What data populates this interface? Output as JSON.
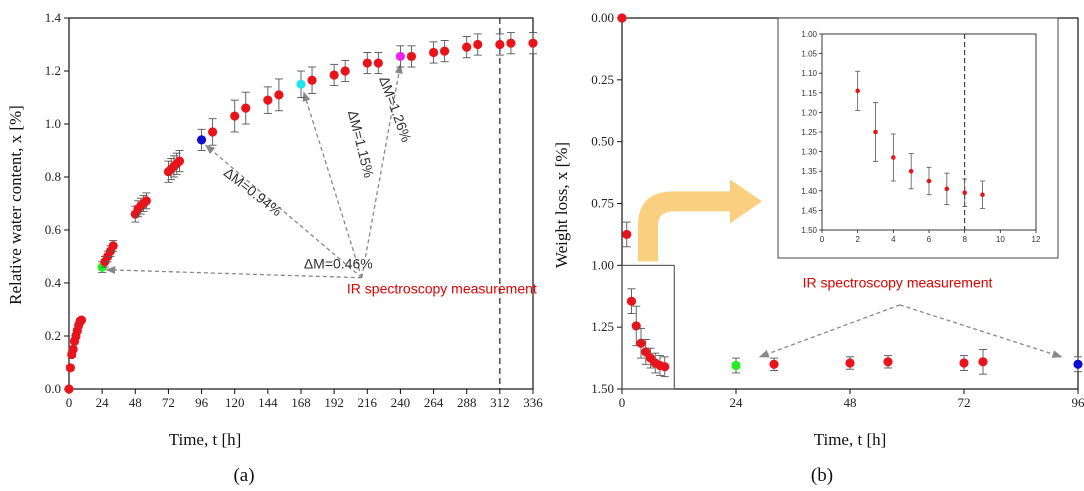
{
  "panel_labels": {
    "a": "(a)",
    "b": "(b)"
  },
  "chart_data": [
    {
      "type": "scatter",
      "xlabel": "Time, t [h]",
      "ylabel": "Relative water content, x [%]",
      "xlim": [
        0,
        336
      ],
      "ylim": [
        0,
        1.4
      ],
      "xticks": [
        "0",
        "24",
        "48",
        "72",
        "96",
        "120",
        "144",
        "168",
        "192",
        "216",
        "240",
        "264",
        "288",
        "312",
        "336"
      ],
      "yticks": [
        "0.0",
        "0.2",
        "0.4",
        "0.6",
        "0.8",
        "1.0",
        "1.2",
        "1.4"
      ],
      "vline_x": 312,
      "colors": {
        "default": "#e8141c",
        "green": "#22ee22",
        "blue": "#1010cc",
        "cyan": "#22e5f0",
        "magenta": "#ee22ee",
        "arrow": "#888888"
      },
      "points": [
        {
          "x": 0,
          "y": 0.0,
          "err": 0
        },
        {
          "x": 1,
          "y": 0.08,
          "err": 0.01
        },
        {
          "x": 2,
          "y": 0.13,
          "err": 0.01
        },
        {
          "x": 3,
          "y": 0.15,
          "err": 0.01
        },
        {
          "x": 4,
          "y": 0.18,
          "err": 0.01
        },
        {
          "x": 5,
          "y": 0.2,
          "err": 0.01
        },
        {
          "x": 6,
          "y": 0.22,
          "err": 0.01
        },
        {
          "x": 7,
          "y": 0.24,
          "err": 0.01
        },
        {
          "x": 8,
          "y": 0.255,
          "err": 0.01
        },
        {
          "x": 9,
          "y": 0.26,
          "err": 0.01
        },
        {
          "x": 24,
          "y": 0.46,
          "err": 0.02,
          "color": "green"
        },
        {
          "x": 26,
          "y": 0.48,
          "err": 0.02
        },
        {
          "x": 28,
          "y": 0.5,
          "err": 0.02
        },
        {
          "x": 30,
          "y": 0.52,
          "err": 0.02
        },
        {
          "x": 32,
          "y": 0.54,
          "err": 0.02
        },
        {
          "x": 48,
          "y": 0.66,
          "err": 0.03
        },
        {
          "x": 50,
          "y": 0.68,
          "err": 0.03
        },
        {
          "x": 52,
          "y": 0.69,
          "err": 0.03
        },
        {
          "x": 54,
          "y": 0.7,
          "err": 0.03
        },
        {
          "x": 56,
          "y": 0.71,
          "err": 0.03
        },
        {
          "x": 72,
          "y": 0.82,
          "err": 0.04
        },
        {
          "x": 74,
          "y": 0.83,
          "err": 0.04
        },
        {
          "x": 76,
          "y": 0.84,
          "err": 0.04
        },
        {
          "x": 78,
          "y": 0.85,
          "err": 0.04
        },
        {
          "x": 80,
          "y": 0.86,
          "err": 0.04
        },
        {
          "x": 96,
          "y": 0.94,
          "err": 0.04,
          "color": "blue"
        },
        {
          "x": 104,
          "y": 0.97,
          "err": 0.05
        },
        {
          "x": 120,
          "y": 1.03,
          "err": 0.06
        },
        {
          "x": 128,
          "y": 1.06,
          "err": 0.06
        },
        {
          "x": 144,
          "y": 1.09,
          "err": 0.05
        },
        {
          "x": 152,
          "y": 1.11,
          "err": 0.06
        },
        {
          "x": 168,
          "y": 1.15,
          "err": 0.05,
          "color": "cyan"
        },
        {
          "x": 176,
          "y": 1.165,
          "err": 0.05
        },
        {
          "x": 192,
          "y": 1.185,
          "err": 0.04
        },
        {
          "x": 200,
          "y": 1.2,
          "err": 0.04
        },
        {
          "x": 216,
          "y": 1.23,
          "err": 0.04
        },
        {
          "x": 224,
          "y": 1.23,
          "err": 0.04
        },
        {
          "x": 240,
          "y": 1.255,
          "err": 0.04,
          "color": "magenta"
        },
        {
          "x": 248,
          "y": 1.255,
          "err": 0.04
        },
        {
          "x": 264,
          "y": 1.27,
          "err": 0.04
        },
        {
          "x": 272,
          "y": 1.275,
          "err": 0.04
        },
        {
          "x": 288,
          "y": 1.29,
          "err": 0.04
        },
        {
          "x": 296,
          "y": 1.3,
          "err": 0.04
        },
        {
          "x": 312,
          "y": 1.3,
          "err": 0.04
        },
        {
          "x": 320,
          "y": 1.305,
          "err": 0.04
        },
        {
          "x": 336,
          "y": 1.305,
          "err": 0.04
        }
      ],
      "annotations": [
        {
          "text": "ΔM=0.46%",
          "x": 195,
          "y": 0.455,
          "angle": 0
        },
        {
          "text": "ΔM=0.94%",
          "x": 131,
          "y": 0.73,
          "angle": 38
        },
        {
          "text": "ΔM=1.15%",
          "x": 208,
          "y": 0.92,
          "angle": 76
        },
        {
          "text": "ΔM=1.26%",
          "x": 233,
          "y": 1.05,
          "angle": 70
        }
      ],
      "ir_label": "IR spectroscopy measurement",
      "ir_label_pos": {
        "x": 270,
        "y": 0.36
      },
      "arrow_origin": {
        "x": 212,
        "y": 0.42
      },
      "arrow_targets": [
        {
          "x": 27,
          "y": 0.45
        },
        {
          "x": 99,
          "y": 0.92
        },
        {
          "x": 170,
          "y": 1.12
        },
        {
          "x": 240,
          "y": 1.225
        }
      ]
    },
    {
      "type": "scatter",
      "xlabel": "Time, t [h]",
      "ylabel": "Weight loss, x [%]",
      "xlim": [
        0,
        96
      ],
      "ylim": [
        0,
        1.5
      ],
      "y_inverted": true,
      "xticks": [
        "0",
        "24",
        "48",
        "72",
        "96"
      ],
      "yticks": [
        "0.00",
        "0.25",
        "0.50",
        "0.75",
        "1.00",
        "1.25",
        "1.50"
      ],
      "colors": {
        "default": "#e8141c",
        "green": "#22ee22",
        "blue": "#1010cc",
        "callout": "#f9c76a",
        "arrow": "#888888"
      },
      "points": [
        {
          "x": 0,
          "y": 0.0,
          "err": 0
        },
        {
          "x": 1,
          "y": 0.875,
          "err": 0.05
        },
        {
          "x": 2,
          "y": 1.145,
          "err": 0.05
        },
        {
          "x": 3,
          "y": 1.245,
          "err": 0.08
        },
        {
          "x": 4,
          "y": 1.315,
          "err": 0.06
        },
        {
          "x": 5,
          "y": 1.35,
          "err": 0.05
        },
        {
          "x": 6,
          "y": 1.375,
          "err": 0.04
        },
        {
          "x": 7,
          "y": 1.395,
          "err": 0.04
        },
        {
          "x": 8,
          "y": 1.405,
          "err": 0.04
        },
        {
          "x": 9,
          "y": 1.41,
          "err": 0.04
        },
        {
          "x": 24,
          "y": 1.405,
          "err": 0.03,
          "color": "green"
        },
        {
          "x": 32,
          "y": 1.4,
          "err": 0.025
        },
        {
          "x": 48,
          "y": 1.395,
          "err": 0.025
        },
        {
          "x": 56,
          "y": 1.39,
          "err": 0.025
        },
        {
          "x": 72,
          "y": 1.395,
          "err": 0.03
        },
        {
          "x": 76,
          "y": 1.39,
          "err": 0.05
        },
        {
          "x": 96,
          "y": 1.4,
          "err": 0.03,
          "color": "blue"
        }
      ],
      "ir_label": "IR spectroscopy measurement",
      "ir_label_pos": {
        "x": 58,
        "y": 1.09
      },
      "arrow_origin": {
        "x": 58.5,
        "y": 1.16
      },
      "arrow_targets": [
        {
          "x": 29,
          "y": 1.37
        },
        {
          "x": 92.5,
          "y": 1.37
        }
      ],
      "zoom_box": {
        "x0": 0,
        "x1": 11,
        "y0": 1.0,
        "y1": 1.5
      },
      "inset": {
        "xlim": [
          0,
          12
        ],
        "ylim": [
          1.0,
          1.5
        ],
        "y_inverted": true,
        "vline_x": 8,
        "xticks": [
          "0",
          "2",
          "4",
          "6",
          "8",
          "10",
          "12"
        ],
        "yticks": [
          "1.00",
          "1.05",
          "1.10",
          "1.15",
          "1.20",
          "1.25",
          "1.30",
          "1.35",
          "1.40",
          "1.45",
          "1.50"
        ],
        "points": [
          {
            "x": 2,
            "y": 1.145,
            "err": 0.05
          },
          {
            "x": 3,
            "y": 1.25,
            "err": 0.075
          },
          {
            "x": 4,
            "y": 1.315,
            "err": 0.06
          },
          {
            "x": 5,
            "y": 1.35,
            "err": 0.045
          },
          {
            "x": 6,
            "y": 1.375,
            "err": 0.035
          },
          {
            "x": 7,
            "y": 1.395,
            "err": 0.04
          },
          {
            "x": 8,
            "y": 1.405,
            "err": 0.035
          },
          {
            "x": 9,
            "y": 1.41,
            "err": 0.035
          }
        ]
      }
    }
  ]
}
